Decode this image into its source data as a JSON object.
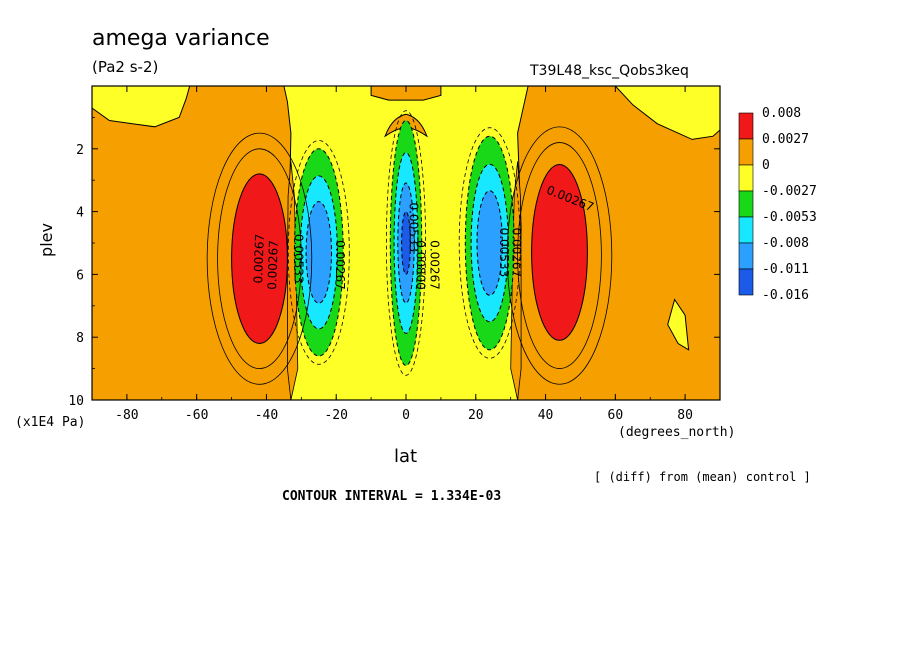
{
  "header": {
    "title": "amega variance",
    "units": "(Pa2 s-2)",
    "run_name": "T39L48_ksc_Qobs3keq"
  },
  "footer": {
    "y_units": "(x1E4 Pa)",
    "x_units": "(degrees_north)",
    "diff_note": "[ (diff) from (mean) control ]",
    "contour_interval": "CONTOUR INTERVAL = 1.334E-03"
  },
  "chart_data": {
    "type": "heatmap",
    "title": "amega variance",
    "xlabel": "lat",
    "ylabel": "plev",
    "xlim": [
      -90,
      90
    ],
    "ylim": [
      0,
      10
    ],
    "y_inverted": true,
    "x_ticks": [
      -80,
      -60,
      -40,
      -20,
      0,
      20,
      40,
      60,
      80
    ],
    "y_ticks": [
      2,
      4,
      6,
      8,
      10
    ],
    "colors": {
      "red": "#f01818",
      "orange": "#f5a000",
      "yellow": "#ffff28",
      "green": "#18d818",
      "cyan": "#18e8ff",
      "blue": "#2ba0ff",
      "darkblue": "#1c5ae8"
    },
    "legend": {
      "position": "right",
      "levels": [
        "0.008",
        "0.0027",
        "0",
        "-0.0027",
        "-0.0053",
        "-0.008",
        "-0.011",
        "-0.016"
      ],
      "colors": [
        "#f01818",
        "#f5a000",
        "#ffff28",
        "#18d818",
        "#18e8ff",
        "#2ba0ff",
        "#1c5ae8"
      ]
    },
    "features": [
      {
        "name": "sh-positive-max",
        "sign": "positive",
        "color_key": "red",
        "lat": -42,
        "plev": 5.5,
        "lat_halfwidth": 8,
        "plev_halfwidth": 2.7
      },
      {
        "name": "nh-positive-max",
        "sign": "positive",
        "color_key": "red",
        "lat": 44,
        "plev": 5.3,
        "lat_halfwidth": 8,
        "plev_halfwidth": 2.8
      },
      {
        "name": "sh-negative-min",
        "sign": "negative",
        "color_key": "blue",
        "lat": -25,
        "plev": 5.3,
        "lat_halfwidth": 7,
        "plev_halfwidth": 3.3
      },
      {
        "name": "eq-negative-min",
        "sign": "negative",
        "color_key": "darkblue",
        "lat": 0,
        "plev": 5.0,
        "lat_halfwidth": 4.5,
        "plev_halfwidth": 3.9
      },
      {
        "name": "nh-negative-min",
        "sign": "negative",
        "color_key": "blue",
        "lat": 24,
        "plev": 5.0,
        "lat_halfwidth": 7,
        "plev_halfwidth": 3.4
      }
    ],
    "contour_labels": [
      {
        "text": "0.00267",
        "lat": -38,
        "plev": 5.7,
        "rotate": -88
      },
      {
        "text": "0.00267",
        "lat": -42,
        "plev": 5.5,
        "rotate": -88
      },
      {
        "text": "0.00533",
        "lat": -31,
        "plev": 5.5,
        "rotate": 90
      },
      {
        "text": "0.00267",
        "lat": -19,
        "plev": 5.7,
        "rotate": 90
      },
      {
        "text": "0.00533",
        "lat": 2,
        "plev": 4.5,
        "rotate": 90
      },
      {
        "text": "0.00800",
        "lat": 4,
        "plev": 5.7,
        "rotate": 90
      },
      {
        "text": "0.00267",
        "lat": 8,
        "plev": 5.7,
        "rotate": 90
      },
      {
        "text": "0.00533",
        "lat": 28,
        "plev": 5.3,
        "rotate": 90
      },
      {
        "text": "0.00267",
        "lat": 31.5,
        "plev": 5.3,
        "rotate": 90
      },
      {
        "text": "0.00267",
        "lat": 47,
        "plev": 3.6,
        "rotate": 22
      }
    ]
  }
}
